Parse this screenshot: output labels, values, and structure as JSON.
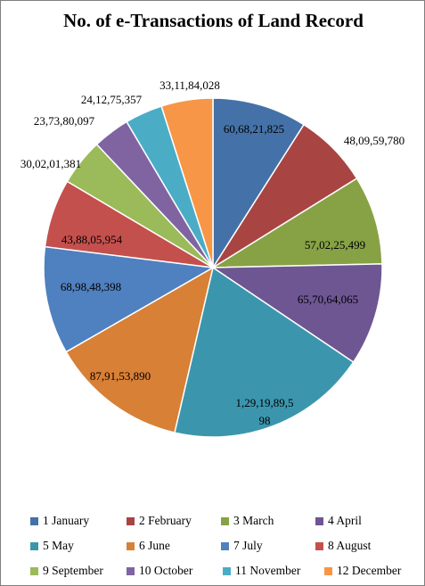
{
  "chart_data": {
    "type": "pie",
    "title": "No. of e-Transactions of Land Record",
    "start_angle_deg": 0,
    "direction": "clockwise",
    "legend_position": "bottom",
    "slices": [
      {
        "label": "1 January",
        "value": 606821825,
        "value_text": "60,68,21,825",
        "color": "#4472a8"
      },
      {
        "label": "2 February",
        "value": 480959780,
        "value_text": "48,09,59,780",
        "color": "#a84543"
      },
      {
        "label": "3 March",
        "value": 570225499,
        "value_text": "57,02,25,499",
        "color": "#87a245"
      },
      {
        "label": "4 April",
        "value": 657064065,
        "value_text": "65,70,64,065",
        "color": "#6e5693"
      },
      {
        "label": "5 May",
        "value": 1291989598,
        "value_text_lines": [
          "1,29,19,89,5",
          "98"
        ],
        "color": "#3b96ad"
      },
      {
        "label": "6 June",
        "value": 879153890,
        "value_text": "87,91,53,890",
        "color": "#d88036"
      },
      {
        "label": "7 July",
        "value": 689848398,
        "value_text": "68,98,48,398",
        "color": "#4f80c0"
      },
      {
        "label": "8 August",
        "value": 438805954,
        "value_text": "43,88,05,954",
        "color": "#c4504d"
      },
      {
        "label": "9 September",
        "value": 300201381,
        "value_text": "30,02,01,381",
        "color": "#9bba59"
      },
      {
        "label": "10 October",
        "value": 237380097,
        "value_text": "23,73,80,097",
        "color": "#8064a2"
      },
      {
        "label": "11 November",
        "value": 241275357,
        "value_text": "24,12,75,357",
        "color": "#4bacc6"
      },
      {
        "label": "12 December",
        "value": 331184028,
        "value_text": "33,11,84,028",
        "color": "#f79646"
      }
    ]
  }
}
